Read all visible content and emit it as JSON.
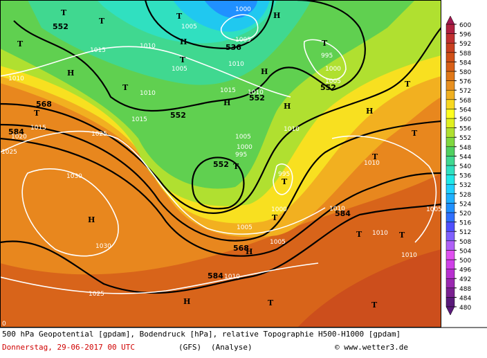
{
  "footer": {
    "line1": "500 hPa Geopotential [gpdam], Bodendruck [hPa], relative Topographie H500-H1000 [gpdam]",
    "date": "Donnerstag, 29-06-2017  00 UTC",
    "model": "(GFS)",
    "run": "(Analyse)",
    "credit": "© www.wetter3.de"
  },
  "colorbar": {
    "ticks": [
      480,
      484,
      488,
      492,
      496,
      500,
      504,
      508,
      512,
      516,
      520,
      524,
      528,
      532,
      536,
      540,
      544,
      548,
      552,
      556,
      560,
      564,
      568,
      572,
      576,
      580,
      584,
      588,
      592,
      596,
      600
    ],
    "colors": [
      "#5a1a7a",
      "#7a2090",
      "#9a28b0",
      "#b830d0",
      "#d040e8",
      "#e050f0",
      "#b060f8",
      "#8060ff",
      "#5050ff",
      "#3070ff",
      "#2090ff",
      "#20b0ff",
      "#20d0ff",
      "#20e8e8",
      "#30e0c0",
      "#40d890",
      "#50d060",
      "#80d840",
      "#b0e030",
      "#e0f020",
      "#ffff20",
      "#f8d820",
      "#f0b020",
      "#e89020",
      "#e07818",
      "#d86018",
      "#d05018",
      "#c84020",
      "#c03030",
      "#b02040",
      "#a01850"
    ]
  },
  "map_labels": [
    "552",
    "536",
    "552",
    "552",
    "552",
    "552",
    "568",
    "568",
    "584",
    "584",
    "584",
    "1000",
    "1005",
    "1005",
    "1005",
    "1015",
    "1010",
    "1010",
    "1010",
    "1015",
    "1015",
    "1010",
    "995",
    "1000",
    "1005",
    "1010",
    "1015",
    "1020",
    "1025",
    "1025",
    "1030",
    "1030",
    "1025",
    "1010",
    "1000",
    "995",
    "1005",
    "995",
    "1000",
    "1005",
    "1005",
    "1010",
    "1010",
    "1010",
    "1005",
    "1010",
    "1010",
    "0",
    "T",
    "T",
    "H",
    "T",
    "T",
    "H",
    "T",
    "H",
    "T",
    "H",
    "H",
    "H",
    "T",
    "T",
    "H",
    "T",
    "T",
    "T",
    "T",
    "T",
    "T",
    "H",
    "H",
    "T",
    "T",
    "H",
    "T",
    "T"
  ]
}
